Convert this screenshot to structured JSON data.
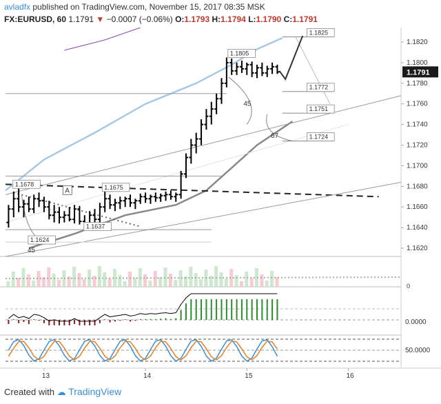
{
  "header": {
    "author": "avladfx",
    "published": "published on TradingView.com, November 15, 2017 08:35 MSK",
    "symbol": "FX:EURUSD, 60",
    "last": "1.1791",
    "change": "−0.0007 (−0.06%)",
    "o_label": "O:",
    "o": "1.1793",
    "h_label": "H:",
    "h": "1.1794",
    "l_label": "L:",
    "l": "1.1790",
    "c_label": "C:",
    "c": "1.1791"
  },
  "footer": {
    "created_with": "Created with",
    "brand": "TradingView"
  },
  "chart_data": {
    "type": "candlestick",
    "y_axis": {
      "ylim": [
        1.1612,
        1.1834
      ],
      "ticks": [
        "1.1820",
        "1.1800",
        "1.1780",
        "1.1760",
        "1.1740",
        "1.1720",
        "1.1700",
        "1.1680",
        "1.1660",
        "1.1640",
        "1.1620"
      ],
      "tick_values": [
        1.182,
        1.18,
        1.178,
        1.176,
        1.174,
        1.172,
        1.17,
        1.168,
        1.166,
        1.164,
        1.162
      ],
      "last_price": "1.1791",
      "last_price_value": 1.1791
    },
    "x_axis": {
      "ticks": [
        "13",
        "14",
        "15",
        "16"
      ],
      "tick_positions": [
        13,
        14,
        15,
        16
      ],
      "xlim": [
        12.62,
        16.52
      ]
    },
    "price_labels": [
      {
        "text": "1.1825",
        "t": 15.6,
        "v": 1.1825
      },
      {
        "text": "1.1805",
        "t": 14.82,
        "v": 1.1805
      },
      {
        "text": "1.1772",
        "t": 15.6,
        "v": 1.1772
      },
      {
        "text": "1.1751",
        "t": 15.6,
        "v": 1.1751
      },
      {
        "text": "1.1724",
        "t": 15.6,
        "v": 1.1724
      },
      {
        "text": "1.1678",
        "t": 12.7,
        "v": 1.1678
      },
      {
        "text": "1.1675",
        "t": 13.58,
        "v": 1.1675
      },
      {
        "text": "1.1637",
        "t": 13.4,
        "v": 1.1637
      },
      {
        "text": "1.1624",
        "t": 12.85,
        "v": 1.1624
      }
    ],
    "annotations": [
      {
        "text": "A",
        "t": 13.22,
        "v": 1.1674
      },
      {
        "text": "45",
        "t": 14.98,
        "v": 1.1758
      },
      {
        "text": "67",
        "t": 15.25,
        "v": 1.1727
      },
      {
        "text": "45",
        "t": 12.85,
        "v": 1.1616
      }
    ],
    "ohlc": [
      [
        12.65,
        1.1645,
        1.1662,
        1.164,
        1.1658
      ],
      [
        12.7,
        1.1658,
        1.1675,
        1.165,
        1.1668
      ],
      [
        12.75,
        1.1668,
        1.1678,
        1.1655,
        1.166
      ],
      [
        12.8,
        1.166,
        1.1667,
        1.165,
        1.1663
      ],
      [
        12.85,
        1.1663,
        1.167,
        1.1655,
        1.1658
      ],
      [
        12.9,
        1.1658,
        1.1672,
        1.1654,
        1.1668
      ],
      [
        12.95,
        1.1668,
        1.1674,
        1.166,
        1.1666
      ],
      [
        13.0,
        1.1666,
        1.167,
        1.1655,
        1.166
      ],
      [
        13.05,
        1.166,
        1.1666,
        1.1648,
        1.1652
      ],
      [
        13.1,
        1.1652,
        1.1662,
        1.1645,
        1.1655
      ],
      [
        13.15,
        1.1655,
        1.166,
        1.1644,
        1.165
      ],
      [
        13.2,
        1.165,
        1.1656,
        1.1645,
        1.1652
      ],
      [
        13.25,
        1.1652,
        1.166,
        1.1646,
        1.1648
      ],
      [
        13.3,
        1.1648,
        1.1662,
        1.1644,
        1.1658
      ],
      [
        13.35,
        1.1658,
        1.1661,
        1.1643,
        1.1646
      ],
      [
        13.4,
        1.1646,
        1.1652,
        1.1637,
        1.164
      ],
      [
        13.45,
        1.164,
        1.1656,
        1.1638,
        1.1652
      ],
      [
        13.5,
        1.1652,
        1.1658,
        1.1645,
        1.1648
      ],
      [
        13.55,
        1.1648,
        1.1664,
        1.1645,
        1.166
      ],
      [
        13.6,
        1.166,
        1.1675,
        1.1655,
        1.1668
      ],
      [
        13.65,
        1.1668,
        1.1672,
        1.1658,
        1.1662
      ],
      [
        13.7,
        1.1662,
        1.1668,
        1.1656,
        1.1664
      ],
      [
        13.75,
        1.1664,
        1.167,
        1.1658,
        1.1666
      ],
      [
        13.8,
        1.1666,
        1.167,
        1.166,
        1.1668
      ],
      [
        13.85,
        1.1668,
        1.1672,
        1.166,
        1.1664
      ],
      [
        13.9,
        1.1664,
        1.1668,
        1.1658,
        1.1666
      ],
      [
        13.95,
        1.1666,
        1.1673,
        1.1663,
        1.167
      ],
      [
        14.0,
        1.167,
        1.1674,
        1.1664,
        1.1668
      ],
      [
        14.05,
        1.1668,
        1.1672,
        1.1663,
        1.167
      ],
      [
        14.1,
        1.167,
        1.1674,
        1.1665,
        1.1669
      ],
      [
        14.15,
        1.1669,
        1.1673,
        1.1665,
        1.1671
      ],
      [
        14.2,
        1.1671,
        1.1675,
        1.1666,
        1.1672
      ],
      [
        14.25,
        1.1672,
        1.1676,
        1.1667,
        1.167
      ],
      [
        14.3,
        1.167,
        1.1674,
        1.1665,
        1.1672
      ],
      [
        14.35,
        1.1672,
        1.1695,
        1.1668,
        1.1692
      ],
      [
        14.4,
        1.1692,
        1.1712,
        1.1688,
        1.1708
      ],
      [
        14.45,
        1.1708,
        1.1726,
        1.1702,
        1.172
      ],
      [
        14.5,
        1.172,
        1.1732,
        1.1712,
        1.1726
      ],
      [
        14.55,
        1.1726,
        1.1745,
        1.172,
        1.174
      ],
      [
        14.6,
        1.174,
        1.1755,
        1.1735,
        1.1748
      ],
      [
        14.65,
        1.1748,
        1.1762,
        1.174,
        1.1755
      ],
      [
        14.7,
        1.1755,
        1.177,
        1.175,
        1.1765
      ],
      [
        14.75,
        1.1765,
        1.1785,
        1.176,
        1.178
      ],
      [
        14.8,
        1.178,
        1.1805,
        1.1776,
        1.18
      ],
      [
        14.85,
        1.18,
        1.1804,
        1.1788,
        1.1792
      ],
      [
        14.9,
        1.1792,
        1.18,
        1.1788,
        1.1796
      ],
      [
        14.95,
        1.1796,
        1.1802,
        1.179,
        1.1794
      ],
      [
        15.0,
        1.1794,
        1.18,
        1.1788,
        1.1798
      ],
      [
        15.05,
        1.1798,
        1.1801,
        1.1786,
        1.179
      ],
      [
        15.1,
        1.179,
        1.1798,
        1.1785,
        1.1795
      ],
      [
        15.15,
        1.1795,
        1.18,
        1.1787,
        1.179
      ],
      [
        15.2,
        1.179,
        1.1797,
        1.1786,
        1.1794
      ],
      [
        15.25,
        1.1794,
        1.18,
        1.1789,
        1.1796
      ],
      [
        15.3,
        1.1796,
        1.1798,
        1.1789,
        1.1791
      ]
    ],
    "indicator_values": {
      "histogram_zero_label": "0.0000",
      "stochastic_level_label": "50.0000"
    },
    "colors": {
      "up": "#000000",
      "down": "#000000",
      "ma_light": "#a6c8e6",
      "ma_dark": "#888888",
      "purple": "#8e44ad",
      "hist_pos": "#2e8b2e",
      "hist_neg": "#8b1a1a",
      "stoch_k": "#3a8ed9",
      "stoch_d": "#e67e22",
      "last_badge": "#1a1a1a",
      "down_arrow": "#c0392b"
    }
  }
}
